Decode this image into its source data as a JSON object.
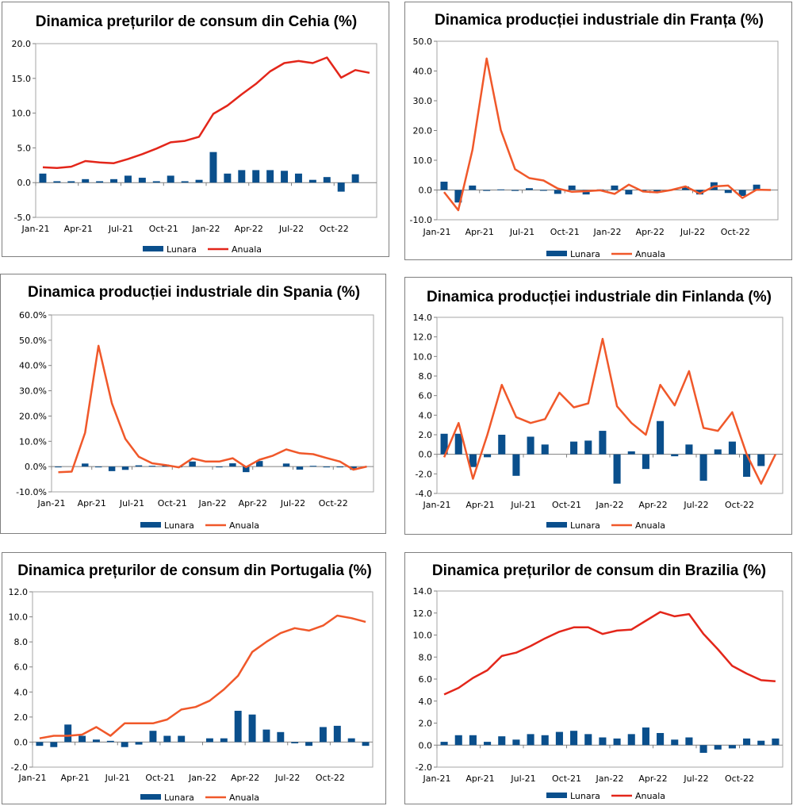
{
  "months": [
    "Jan-21",
    "Feb-21",
    "Mar-21",
    "Apr-21",
    "May-21",
    "Jun-21",
    "Jul-21",
    "Aug-21",
    "Sep-21",
    "Oct-21",
    "Nov-21",
    "Dec-21",
    "Jan-22",
    "Feb-22",
    "Mar-22",
    "Apr-22",
    "May-22",
    "Jun-22",
    "Jul-22",
    "Aug-22",
    "Sep-22",
    "Oct-22",
    "Nov-22",
    "Dec-22"
  ],
  "legend": {
    "monthly": "Lunara",
    "annual": "Anuala"
  },
  "colors": {
    "bar": "#0a4f8c",
    "line_red": "#e3261a",
    "line_orange": "#f0582a"
  },
  "chart_data": [
    {
      "type": "bar+line",
      "title": "Dinamica prețurilor de consum din Cehia (%)",
      "ylim": [
        -5.0,
        20.0
      ],
      "yticks": [
        "-5.0",
        "0.0",
        "5.0",
        "10.0",
        "15.0",
        "20.0"
      ],
      "xticks": [
        "Jan-21",
        "Apr-21",
        "Jul-21",
        "Oct-21",
        "Jan-22",
        "Apr-22",
        "Jul-22",
        "Oct-22"
      ],
      "line_color": "line_red",
      "series": [
        {
          "name": "Lunara",
          "kind": "bar",
          "values": [
            1.3,
            0.2,
            0.2,
            0.5,
            0.2,
            0.5,
            1.0,
            0.7,
            0.2,
            1.0,
            0.2,
            0.4,
            4.4,
            1.3,
            1.8,
            1.8,
            1.8,
            1.7,
            1.3,
            0.4,
            0.8,
            -1.3,
            1.2,
            0.0
          ]
        },
        {
          "name": "Anuala",
          "kind": "line",
          "values": [
            2.2,
            2.1,
            2.3,
            3.1,
            2.9,
            2.8,
            3.4,
            4.1,
            4.9,
            5.8,
            6.0,
            6.6,
            9.9,
            11.1,
            12.7,
            14.2,
            16.0,
            17.2,
            17.5,
            17.2,
            18.0,
            15.1,
            16.2,
            15.8
          ]
        }
      ]
    },
    {
      "type": "bar+line",
      "title": "Dinamica producției industriale din Franța (%)",
      "ylim": [
        -10.0,
        50.0
      ],
      "yticks": [
        "-10.0",
        "0.0",
        "10.0",
        "20.0",
        "30.0",
        "40.0",
        "50.0"
      ],
      "xticks": [
        "Jan-21",
        "Apr-21",
        "Jul-21",
        "Oct-21",
        "Jan-22",
        "Apr-22",
        "Jul-22",
        "Oct-22"
      ],
      "line_color": "line_orange",
      "series": [
        {
          "name": "Lunara",
          "kind": "bar",
          "values": [
            2.8,
            -4.2,
            1.5,
            -0.3,
            0.2,
            -0.3,
            0.6,
            -0.2,
            -1.3,
            1.5,
            -1.5,
            0.2,
            1.5,
            -1.5,
            -0.2,
            -0.7,
            0.0,
            1.2,
            -1.5,
            2.6,
            -1.0,
            -2.0,
            1.8,
            0.0
          ]
        },
        {
          "name": "Anuala",
          "kind": "line",
          "values": [
            -0.7,
            -6.8,
            13.5,
            44.2,
            20.1,
            7.0,
            4.0,
            3.2,
            0.5,
            -0.6,
            -0.4,
            -0.1,
            -1.3,
            1.8,
            -0.5,
            -0.8,
            0.0,
            1.2,
            -1.2,
            1.2,
            1.5,
            -2.7,
            0.1,
            0.0
          ]
        }
      ]
    },
    {
      "type": "bar+line",
      "title": "Dinamica producției industriale din Spania (%)",
      "ylim": [
        -10.0,
        60.0
      ],
      "yticks": [
        "-10.0%",
        "0.0%",
        "10.0%",
        "20.0%",
        "30.0%",
        "40.0%",
        "50.0%",
        "60.0%"
      ],
      "xticks": [
        "Jan-21",
        "Apr-21",
        "Jul-21",
        "Oct-21",
        "Jan-22",
        "Apr-22",
        "Jul-22",
        "Oct-22"
      ],
      "line_color": "line_orange",
      "series": [
        {
          "name": "Lunara",
          "kind": "bar",
          "values": [
            -0.2,
            0.0,
            1.2,
            -0.3,
            -1.8,
            -1.3,
            0.5,
            0.3,
            0.8,
            -0.3,
            2.0,
            0.0,
            -0.3,
            1.3,
            -2.2,
            2.2,
            0.0,
            1.2,
            -1.2,
            0.3,
            -0.2,
            -0.2,
            -1.3,
            0.0
          ]
        },
        {
          "name": "Anuala",
          "kind": "line",
          "values": [
            -2.2,
            -2.0,
            13.4,
            47.8,
            25.0,
            11.0,
            3.9,
            1.3,
            0.6,
            -0.3,
            3.2,
            2.0,
            2.0,
            3.3,
            -0.2,
            2.7,
            4.3,
            6.8,
            5.3,
            4.9,
            3.4,
            2.0,
            -1.2,
            0.0
          ]
        }
      ]
    },
    {
      "type": "bar+line",
      "title": "Dinamica producției industriale din Finlanda (%)",
      "ylim": [
        -4.0,
        14.0
      ],
      "yticks": [
        "-4.0",
        "-2.0",
        "0.0",
        "2.0",
        "4.0",
        "6.0",
        "8.0",
        "10.0",
        "12.0",
        "14.0"
      ],
      "xticks": [
        "Jan-21",
        "Apr-21",
        "Jul-21",
        "Oct-21",
        "Jan-22",
        "Apr-22",
        "Jul-22",
        "Oct-22"
      ],
      "line_color": "line_orange",
      "series": [
        {
          "name": "Lunara",
          "kind": "bar",
          "values": [
            2.1,
            2.1,
            -1.3,
            -0.3,
            2.0,
            -2.2,
            1.8,
            1.0,
            0.0,
            1.3,
            1.4,
            2.4,
            -3.0,
            0.3,
            -1.5,
            3.4,
            -0.2,
            1.0,
            -2.7,
            0.5,
            1.3,
            -2.3,
            -1.2,
            0.0
          ]
        },
        {
          "name": "Anuala",
          "kind": "line",
          "values": [
            -0.3,
            3.2,
            -2.5,
            2.0,
            7.1,
            3.8,
            3.2,
            3.6,
            6.3,
            4.8,
            5.2,
            11.8,
            4.9,
            3.2,
            2.0,
            7.1,
            5.0,
            8.5,
            2.7,
            2.4,
            4.3,
            0.0,
            -3.0,
            0.0
          ]
        }
      ]
    },
    {
      "type": "bar+line",
      "title": "Dinamica prețurilor de consum din Portugalia (%)",
      "ylim": [
        -2.0,
        12.0
      ],
      "yticks": [
        "-2.0",
        "0.0",
        "2.0",
        "4.0",
        "6.0",
        "8.0",
        "10.0",
        "12.0"
      ],
      "xticks": [
        "Jan-21",
        "Apr-21",
        "Jul-21",
        "Oct-21",
        "Jan-22",
        "Apr-22",
        "Jul-22",
        "Oct-22"
      ],
      "line_color": "line_orange",
      "series": [
        {
          "name": "Lunara",
          "kind": "bar",
          "values": [
            -0.3,
            -0.4,
            1.4,
            0.5,
            0.2,
            0.1,
            -0.4,
            -0.2,
            0.9,
            0.5,
            0.5,
            0.0,
            0.3,
            0.3,
            2.5,
            2.2,
            1.0,
            0.8,
            -0.1,
            -0.3,
            1.2,
            1.3,
            0.3,
            -0.3
          ]
        },
        {
          "name": "Anuala",
          "kind": "line",
          "values": [
            0.3,
            0.5,
            0.5,
            0.6,
            1.2,
            0.5,
            1.5,
            1.5,
            1.5,
            1.8,
            2.6,
            2.8,
            3.3,
            4.2,
            5.3,
            7.2,
            8.0,
            8.7,
            9.1,
            8.9,
            9.3,
            10.1,
            9.9,
            9.6
          ]
        }
      ]
    },
    {
      "type": "bar+line",
      "title": "Dinamica prețurilor de consum din Brazilia (%)",
      "ylim": [
        -2.0,
        14.0
      ],
      "yticks": [
        "-2.0",
        "0.0",
        "2.0",
        "4.0",
        "6.0",
        "8.0",
        "10.0",
        "12.0",
        "14.0"
      ],
      "xticks": [
        "Jan-21",
        "Apr-21",
        "Jul-21",
        "Oct-21",
        "Jan-22",
        "Apr-22",
        "Jul-22",
        "Oct-22"
      ],
      "line_color": "line_red",
      "series": [
        {
          "name": "Lunara",
          "kind": "bar",
          "values": [
            0.3,
            0.9,
            0.9,
            0.3,
            0.8,
            0.5,
            1.0,
            0.9,
            1.2,
            1.3,
            1.0,
            0.7,
            0.6,
            1.0,
            1.6,
            1.1,
            0.5,
            0.7,
            -0.7,
            -0.4,
            -0.3,
            0.6,
            0.4,
            0.6
          ]
        },
        {
          "name": "Anuala",
          "kind": "line",
          "values": [
            4.6,
            5.2,
            6.1,
            6.8,
            8.1,
            8.4,
            9.0,
            9.7,
            10.3,
            10.7,
            10.7,
            10.1,
            10.4,
            10.5,
            11.3,
            12.1,
            11.7,
            11.9,
            10.1,
            8.7,
            7.2,
            6.5,
            5.9,
            5.8
          ]
        }
      ]
    }
  ]
}
